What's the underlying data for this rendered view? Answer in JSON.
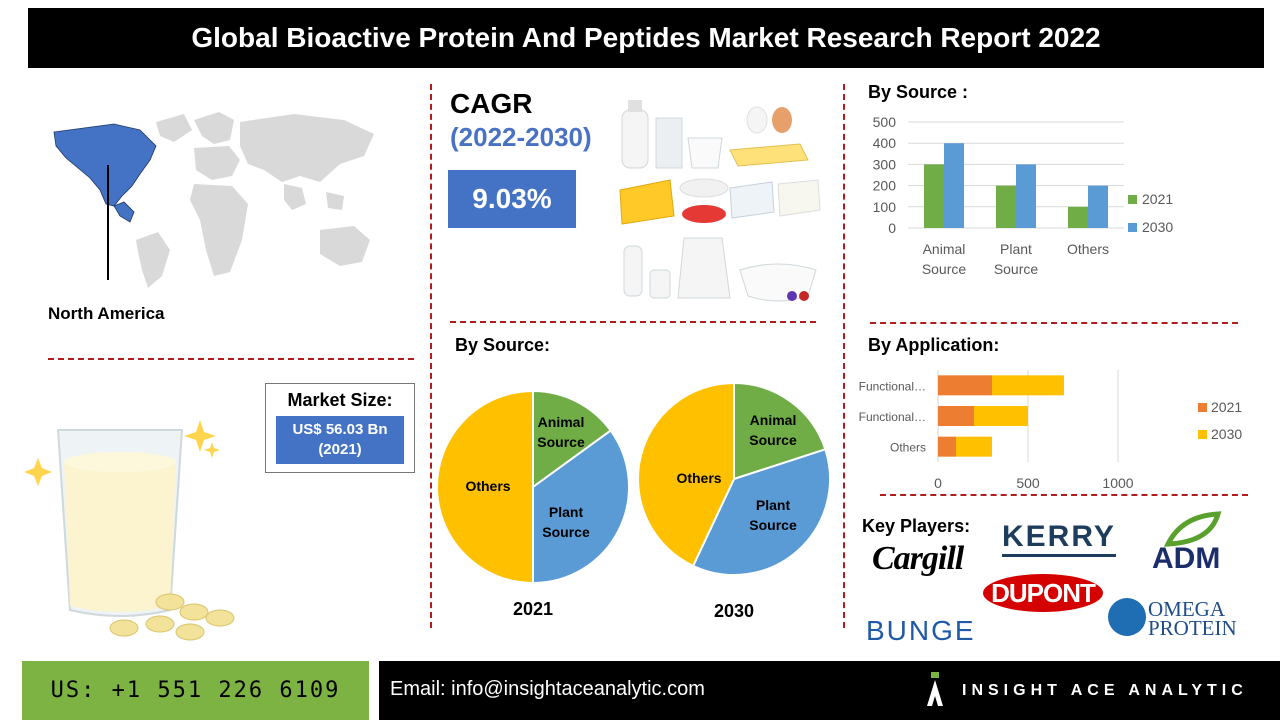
{
  "header": {
    "title": "Global Bioactive Protein And Peptides Market Research Report 2022"
  },
  "region": {
    "label": "North America"
  },
  "cagr": {
    "title": "CAGR",
    "years": "(2022-2030)",
    "value": "9.03%"
  },
  "market_size": {
    "title": "Market Size:",
    "value_line1": "US$ 56.03 Bn",
    "value_line2": "(2021)"
  },
  "sections": {
    "source_bar_title": "By Source :",
    "source_pie_title": "By Source:",
    "application_title": "By Application:",
    "key_players_title": "Key Players:"
  },
  "key_players": [
    "Cargill",
    "KERRY",
    "ADM",
    "DUPONT",
    "BUNGE",
    "OMEGA",
    "PROTEIN"
  ],
  "footer": {
    "phone": "US: +1 551 226 6109",
    "email": "Email: info@insightaceanalytic.com",
    "brand": "INSIGHT ACE ANALYTIC"
  },
  "colors": {
    "green": "#70ad47",
    "blue": "#5b9bd5",
    "orange": "#ed7d31",
    "yellow": "#ffc000",
    "accent": "#4472c4",
    "dash": "#b11d1d"
  },
  "chart_data": [
    {
      "type": "bar",
      "categories": [
        [
          "Animal",
          "Source"
        ],
        [
          "Plant",
          "Source"
        ],
        [
          "Others"
        ]
      ],
      "series": [
        {
          "name": "2021",
          "values": [
            300,
            200,
            100
          ],
          "color": "#70ad47"
        },
        {
          "name": "2030",
          "values": [
            400,
            300,
            200
          ],
          "color": "#5b9bd5"
        }
      ],
      "ylim": [
        0,
        500
      ],
      "yticks": [
        0,
        100,
        200,
        300,
        400,
        500
      ],
      "grid": true,
      "legend": "right"
    },
    {
      "type": "pie",
      "title": "2021",
      "slices": [
        {
          "label": [
            "Animal",
            "Source"
          ],
          "value": 15,
          "color": "#70ad47"
        },
        {
          "label": [
            "Plant",
            "Source"
          ],
          "value": 35,
          "color": "#5b9bd5"
        },
        {
          "label": [
            "Others"
          ],
          "value": 50,
          "color": "#ffc000"
        }
      ]
    },
    {
      "type": "pie",
      "title": "2030",
      "slices": [
        {
          "label": [
            "Animal",
            "Source"
          ],
          "value": 20,
          "color": "#70ad47"
        },
        {
          "label": [
            "Plant",
            "Source"
          ],
          "value": 37,
          "color": "#5b9bd5"
        },
        {
          "label": [
            "Others"
          ],
          "value": 43,
          "color": "#ffc000"
        }
      ]
    },
    {
      "type": "bar",
      "orientation": "horizontal",
      "stacked": true,
      "categories": [
        "Functional…",
        "Functional…",
        "Others"
      ],
      "series": [
        {
          "name": "2021",
          "values": [
            300,
            200,
            100
          ],
          "color": "#ed7d31"
        },
        {
          "name": "2030",
          "values": [
            400,
            300,
            200
          ],
          "color": "#ffc000"
        }
      ],
      "xlim": [
        0,
        1200
      ],
      "xticks": [
        0,
        500,
        1000
      ],
      "grid": true,
      "legend": "right"
    }
  ]
}
